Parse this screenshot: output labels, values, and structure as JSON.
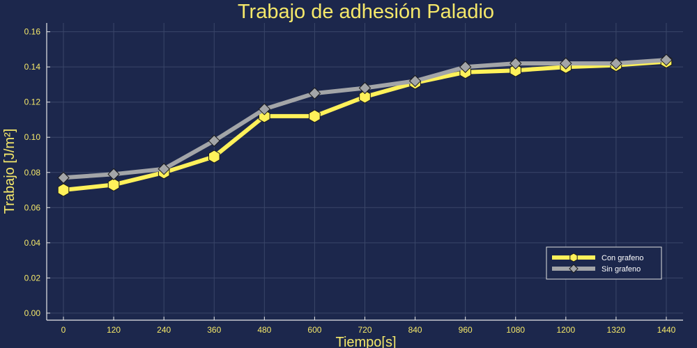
{
  "chart_data": {
    "type": "line",
    "title": "Trabajo de adhesión Paladio",
    "xlabel": "Tiempo[s]",
    "ylabel": "Trabajo [J/m²]",
    "x": [
      0,
      120,
      240,
      360,
      480,
      600,
      720,
      840,
      960,
      1080,
      1200,
      1320,
      1440
    ],
    "x_ticks": [
      "0",
      "120",
      "240",
      "360",
      "480",
      "600",
      "720",
      "840",
      "960",
      "1080",
      "1200",
      "1320",
      "1440"
    ],
    "y_ticks": [
      "0.00",
      "0.02",
      "0.04",
      "0.06",
      "0.08",
      "0.10",
      "0.12",
      "0.14",
      "0.16"
    ],
    "xlim": [
      -40,
      1480
    ],
    "ylim": [
      -0.004,
      0.165
    ],
    "grid": true,
    "legend_position": "bottom-right",
    "series": [
      {
        "name": "Con grafeno",
        "values": [
          0.07,
          0.073,
          0.08,
          0.089,
          0.112,
          0.112,
          0.123,
          0.131,
          0.137,
          0.138,
          0.14,
          0.141,
          0.143
        ],
        "color": "#fff15a",
        "marker": "hexagon"
      },
      {
        "name": "Sin grafeno",
        "values": [
          0.077,
          0.079,
          0.082,
          0.098,
          0.116,
          0.125,
          0.128,
          0.132,
          0.14,
          0.142,
          0.142,
          0.142,
          0.144
        ],
        "color": "#a3a5a8",
        "marker": "diamond"
      }
    ],
    "colors": {
      "background": "#1c274c",
      "text": "#f5e86a",
      "grid": "#3a4669",
      "axis": "#e8e8e8"
    }
  }
}
